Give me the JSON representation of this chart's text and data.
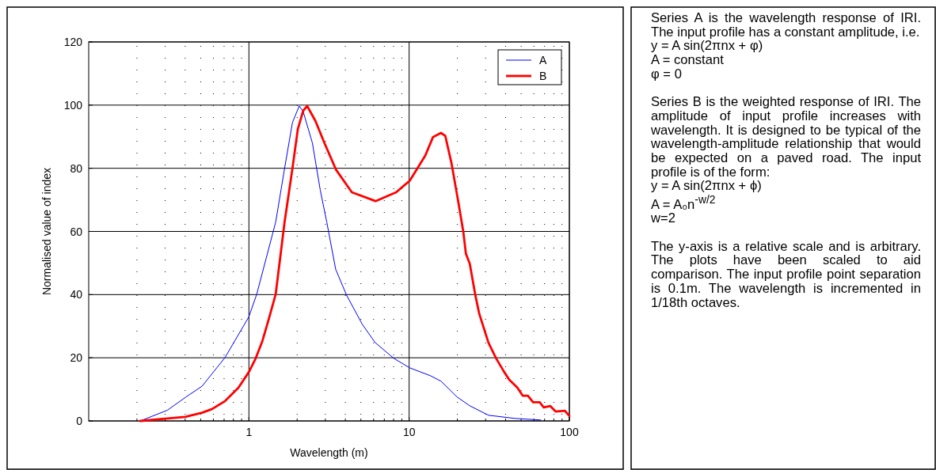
{
  "chart_data": {
    "type": "line",
    "xlabel": "Wavelength (m)",
    "ylabel": "Normalised value of index",
    "log": "x",
    "xlim": [
      0.1,
      100
    ],
    "xticks": [
      1,
      10,
      100
    ],
    "ylim": [
      0,
      120
    ],
    "yticks": [
      0,
      20,
      40,
      60,
      80,
      100,
      120
    ],
    "grid": true,
    "legend": "top right",
    "line_style": "solid",
    "marker": "none",
    "series": [
      {
        "name": "A",
        "color": "#0000ff",
        "x": [
          0.21,
          0.31,
          0.405,
          0.51,
          0.71,
          1.0,
          1.12,
          1.47,
          1.67,
          1.87,
          2.06,
          2.18,
          2.49,
          2.79,
          3.06,
          3.48,
          4.07,
          5.1,
          6.14,
          8.03,
          10.1,
          13.6,
          15.8,
          19.9,
          23.9,
          31.3,
          45.7,
          66.3
        ],
        "values": [
          0,
          3.4,
          7.6,
          11,
          20.1,
          33,
          40.2,
          63,
          80,
          94.5,
          99.7,
          98,
          88,
          73,
          63,
          48,
          39.8,
          30.6,
          24.8,
          19.8,
          16.8,
          14.3,
          12.6,
          7.6,
          4.8,
          1.8,
          0.8,
          0.3
        ]
      },
      {
        "name": "B",
        "color": "#ff0000",
        "x": [
          0.21,
          0.31,
          0.4,
          0.51,
          0.59,
          0.71,
          0.86,
          1.0,
          1.1,
          1.21,
          1.33,
          1.47,
          1.67,
          1.87,
          2.02,
          2.18,
          2.31,
          2.6,
          2.95,
          3.5,
          4.39,
          6.17,
          8.3,
          10.1,
          12.6,
          14.1,
          15.8,
          16.8,
          18.4,
          20.2,
          21.8,
          22.6,
          23.9,
          25.9,
          27.4,
          31.3,
          35.0,
          39.2,
          42.2,
          47.4,
          51.1,
          55.1,
          59.4,
          65.3,
          69.2,
          76.1,
          82.1,
          93.8,
          100
        ],
        "values": [
          0,
          0.8,
          1.3,
          2.6,
          3.8,
          6.3,
          10.5,
          15.5,
          19.7,
          25.1,
          32.2,
          40.2,
          63,
          80,
          92.4,
          98.2,
          99.7,
          95,
          88.2,
          79.5,
          72.4,
          69.6,
          72.4,
          76.1,
          84,
          89.9,
          91.2,
          90.3,
          81.5,
          69.8,
          59.8,
          53,
          49.8,
          39.8,
          33.9,
          24.7,
          19.7,
          15.5,
          13,
          10.5,
          8,
          8,
          5.9,
          5.9,
          4.3,
          4.7,
          3,
          3.2,
          1.6
        ]
      }
    ],
    "annotations": [
      "Series A is the wavelength response of IRI. The input profile has a constant amplitude, i.e.\ny = A sin(2πnx + φ)\nA = constant\nφ = 0",
      "Series B is the weighted response of IRI. The amplitude of input profile increases with wavelength. It is designed to be typical of the wavelength-amplitude relationship that would be expected on a paved road. The input profile is of the form:\ny = A sin(2πnx + ϕ)\nA = A₀n$^{-w/2}$\nw=2",
      "The y-axis is a relative scale and is arbitrary. The plots have been scaled to aid comparison. The input profile point separation is 0.1m. The wavelength is incremented in 1/18th octaves."
    ]
  }
}
